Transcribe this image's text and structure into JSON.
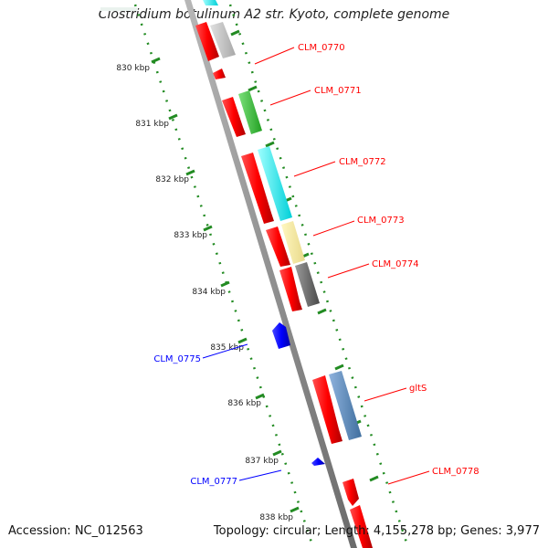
{
  "title": "Clostridium botulinum A2 str. Kyoto, complete genome",
  "accession_label": "Accession: NC_012563",
  "stats_label": "Topology: circular; Length: 4,155,278 bp; Genes: 3,977",
  "kbp_ticks": [
    "830 kbp",
    "831 kbp",
    "832 kbp",
    "833 kbp",
    "834 kbp",
    "835 kbp",
    "836 kbp",
    "837 kbp",
    "838 kbp"
  ],
  "colors": {
    "forward_cds": "#ff0000",
    "reverse_cds": "#0000ff",
    "backbone": "#8a8a8a",
    "tick_green": "#228b22"
  },
  "genes": [
    {
      "name": "CLM_0770",
      "strand": "forward",
      "color": "#ff0000"
    },
    {
      "name": "CLM_0771",
      "strand": "forward",
      "color": "#ff0000"
    },
    {
      "name": "CLM_0772",
      "strand": "forward",
      "color": "#ff0000"
    },
    {
      "name": "CLM_0773",
      "strand": "forward",
      "color": "#ff0000"
    },
    {
      "name": "CLM_0774",
      "strand": "forward",
      "color": "#ff0000"
    },
    {
      "name": "CLM_0775",
      "strand": "reverse",
      "color": "#0000ff"
    },
    {
      "name": "gltS",
      "strand": "forward",
      "color": "#ff0000"
    },
    {
      "name": "CLM_0777",
      "strand": "reverse",
      "color": "#0000ff"
    },
    {
      "name": "CLM_0778",
      "strand": "forward",
      "color": "#ff0000"
    }
  ]
}
